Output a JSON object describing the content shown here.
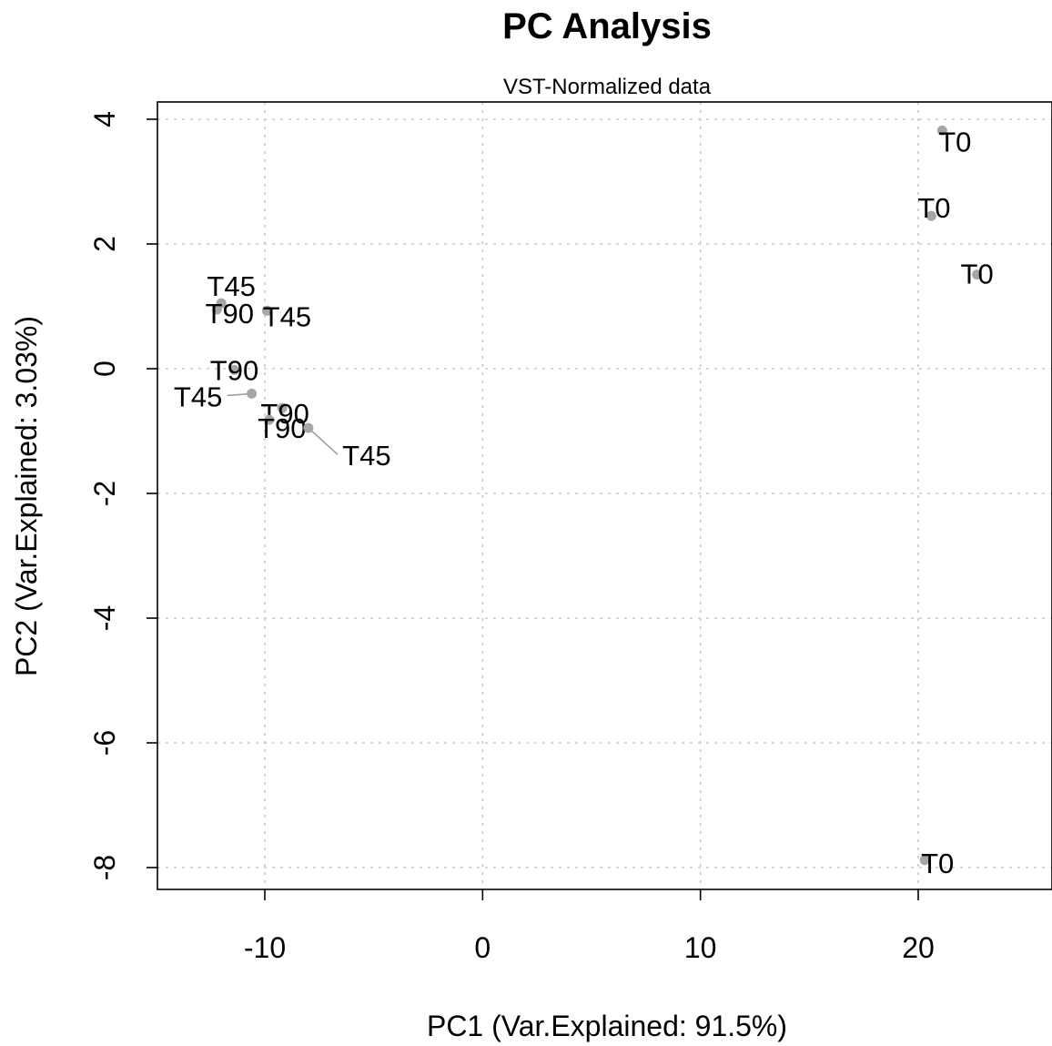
{
  "chart_data": {
    "type": "scatter",
    "title": "PC Analysis",
    "subtitle": "VST-Normalized data",
    "xlabel": "PC1 (Var.Explained: 91.5%)",
    "ylabel": "PC2 (Var.Explained: 3.03%)",
    "xlim": [
      -15,
      26
    ],
    "ylim": [
      -8.7,
      4.6
    ],
    "xticks": [
      -10,
      0,
      10,
      20
    ],
    "yticks": [
      4,
      2,
      0,
      -2,
      -4,
      -6,
      -8
    ],
    "xtick_labels": [
      "-10",
      "0",
      "10",
      "20"
    ],
    "ytick_labels": [
      "4",
      "2",
      "0",
      "-2",
      "-4",
      "-6",
      "-8"
    ],
    "grid": true,
    "point_color": "#a6a6a6",
    "points": [
      {
        "label": "T0",
        "x": 21.1,
        "y": 3.82
      },
      {
        "label": "T0",
        "x": 20.6,
        "y": 2.45
      },
      {
        "label": "T0",
        "x": 22.7,
        "y": 1.51
      },
      {
        "label": "T0",
        "x": 20.3,
        "y": -7.88
      },
      {
        "label": "T45",
        "x": -12.0,
        "y": 1.05
      },
      {
        "label": "T90",
        "x": -12.2,
        "y": 0.95
      },
      {
        "label": "T45",
        "x": -9.9,
        "y": 0.93
      },
      {
        "label": "T90",
        "x": -11.4,
        "y": -0.02
      },
      {
        "label": "T45",
        "x": -10.6,
        "y": -0.4
      },
      {
        "label": "T90",
        "x": -9.2,
        "y": -0.63
      },
      {
        "label": "T90",
        "x": -9.8,
        "y": -0.82
      },
      {
        "label": "T45",
        "x": -8.0,
        "y": -0.95
      }
    ]
  }
}
